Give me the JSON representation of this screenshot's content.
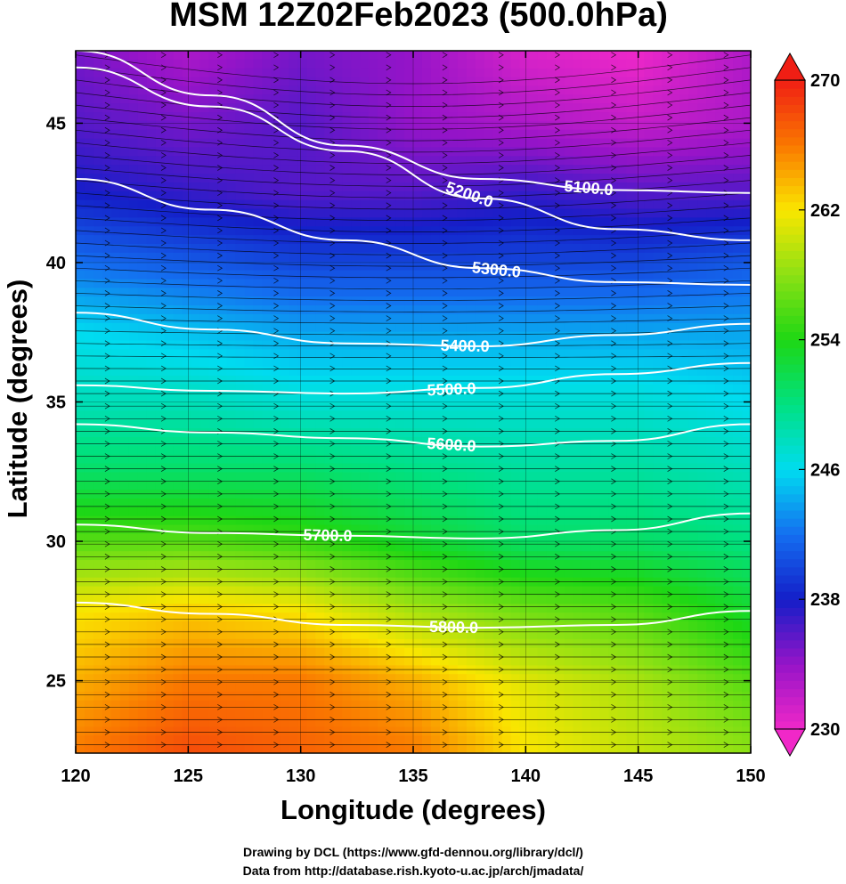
{
  "chart_data": {
    "type": "heatmap",
    "title": "MSM 12Z02Feb2023 (500.0hPa)",
    "xlabel": "Longitude (degrees)",
    "ylabel": "Latitude  (degrees)",
    "xlim": [
      120,
      150
    ],
    "ylim": [
      22.4,
      47.6
    ],
    "x_ticks": [
      120,
      125,
      130,
      135,
      140,
      145,
      150
    ],
    "y_ticks": [
      25,
      30,
      35,
      40,
      45
    ],
    "colorbar": {
      "range": [
        230,
        270
      ],
      "ticks": [
        230,
        238,
        246,
        254,
        262,
        270
      ],
      "extend": "both"
    },
    "contours": [
      {
        "label": "5100.0",
        "label_lon": 142.8,
        "lat": [
          47.6,
          46.0,
          44.2,
          43.0,
          42.6,
          42.5
        ]
      },
      {
        "label": "5200.0",
        "label_lon": 137.5,
        "lat": [
          47.0,
          45.6,
          44.0,
          42.3,
          41.2,
          40.8
        ]
      },
      {
        "label": "5300.0",
        "label_lon": 138.7,
        "lat": [
          43.0,
          41.9,
          40.8,
          39.8,
          39.3,
          39.2
        ]
      },
      {
        "label": "5400.0",
        "label_lon": 137.3,
        "lat": [
          38.2,
          37.6,
          37.1,
          37.0,
          37.4,
          37.8
        ]
      },
      {
        "label": "5500.0",
        "label_lon": 136.7,
        "lat": [
          35.6,
          35.4,
          35.3,
          35.5,
          36.0,
          36.4
        ]
      },
      {
        "label": "5600.0",
        "label_lon": 136.7,
        "lat": [
          34.2,
          33.9,
          33.7,
          33.4,
          33.6,
          34.2
        ]
      },
      {
        "label": "5700.0",
        "label_lon": 131.2,
        "lat": [
          30.6,
          30.3,
          30.2,
          30.1,
          30.4,
          31.0
        ]
      },
      {
        "label": "5800.0",
        "label_lon": 136.8,
        "lat": [
          27.8,
          27.4,
          27.0,
          26.9,
          27.0,
          27.5
        ]
      }
    ],
    "temperature_field": [
      [
        266,
        268,
        267,
        266,
        262,
        260,
        258
      ],
      [
        264,
        266,
        266,
        264,
        261,
        259,
        256
      ],
      [
        262,
        263,
        262,
        259,
        257,
        256,
        253
      ],
      [
        256,
        256,
        255,
        253,
        251,
        251,
        250
      ],
      [
        251,
        251,
        251,
        250,
        249,
        249,
        248
      ],
      [
        248,
        248,
        247,
        247,
        247,
        247,
        246
      ],
      [
        246,
        245,
        244,
        244,
        244,
        244,
        244
      ],
      [
        242,
        241,
        240,
        240,
        240,
        240,
        241
      ],
      [
        238,
        237,
        236,
        236,
        237,
        236,
        236
      ],
      [
        236,
        235,
        236,
        234,
        233,
        232,
        233
      ],
      [
        235,
        233,
        235,
        234,
        231,
        230,
        233
      ]
    ],
    "temperature_field_lats": [
      22.4,
      25,
      27.5,
      30,
      32.5,
      35,
      37.5,
      40,
      42.5,
      45,
      47.6
    ],
    "temperature_field_lons": [
      120,
      125,
      130,
      135,
      140,
      145,
      150
    ]
  },
  "credits": {
    "line1": "Drawing by DCL (https://www.gfd-dennou.org/library/dcl/)",
    "line2": "Data from http://database.rish.kyoto-u.ac.jp/arch/jmadata/"
  }
}
